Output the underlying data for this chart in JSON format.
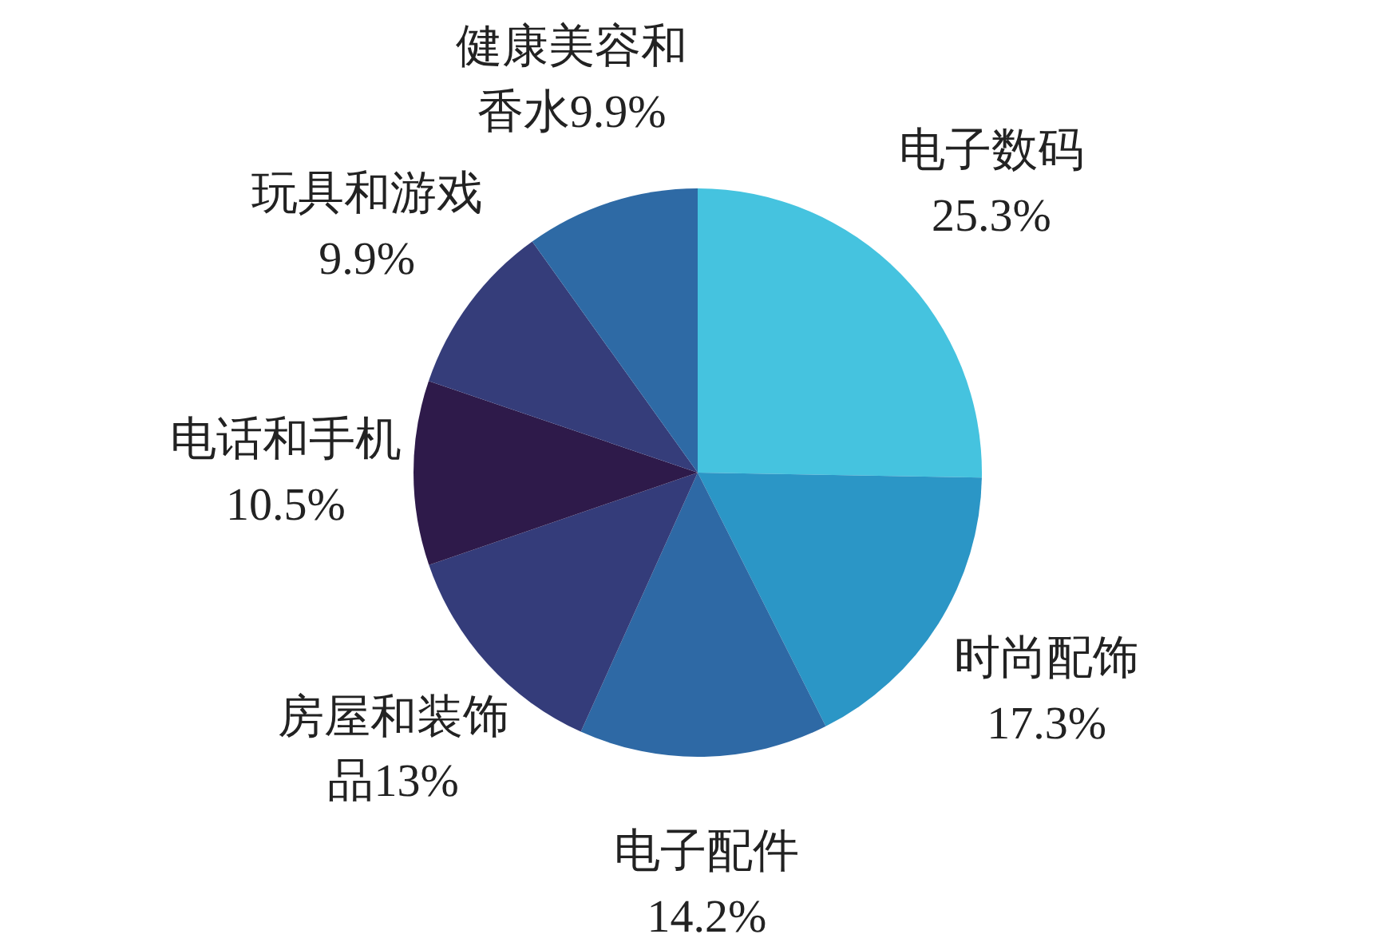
{
  "chart_data": {
    "type": "pie",
    "categories": [
      "电子数码",
      "时尚配饰",
      "电子配件",
      "房屋和装饰品",
      "电话和手机",
      "玩具和游戏",
      "健康美容和香水"
    ],
    "values": [
      25.3,
      17.3,
      14.2,
      13,
      10.5,
      9.9,
      9.9
    ],
    "value_labels": [
      "25.3%",
      "17.3%",
      "14.2%",
      "13%",
      "10.5%",
      "9.9%",
      "9.9%"
    ],
    "colors": [
      "#45c3df",
      "#2b96c6",
      "#2e69a5",
      "#343c7a",
      "#2e1a4a",
      "#353d7a",
      "#2e6aa5"
    ]
  }
}
